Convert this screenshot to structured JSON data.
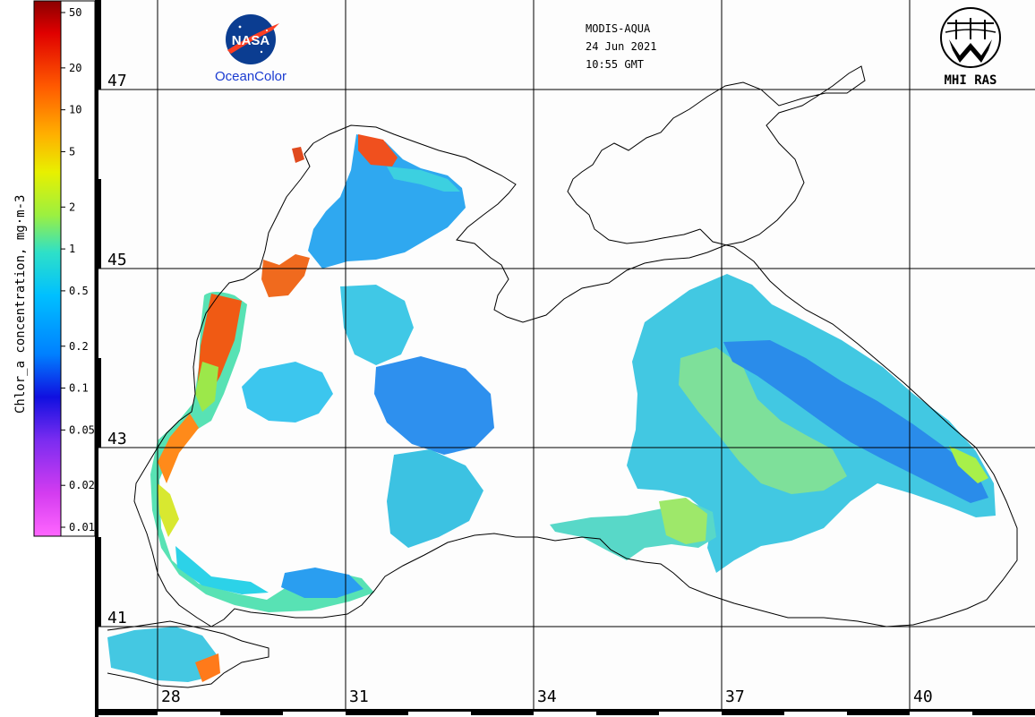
{
  "header": {
    "sensor": "MODIS-AQUA",
    "date": "24 Jun 2021",
    "time": "10:55 GMT",
    "institute": "MHI RAS"
  },
  "logos": {
    "nasa": {
      "name": "NASA",
      "caption": "OceanColor"
    },
    "mhi": {
      "caption": "MHI RAS"
    }
  },
  "colorbar": {
    "title": "Chlor_a concentration, mg·m-3",
    "unit": "mg·m⁻³",
    "scale": "log",
    "range": [
      0.01,
      60
    ],
    "ticks": [
      "50",
      "20",
      "10",
      "5",
      "2",
      "1",
      "0.5",
      "0.2",
      "0.1",
      "0.05",
      "0.02",
      "0.01"
    ],
    "colors": [
      "#8b0000",
      "#ff2a00",
      "#ff7a00",
      "#ffd400",
      "#a8ff3a",
      "#2ee0d8",
      "#00b8ff",
      "#0070ff",
      "#1010e0",
      "#7a2cf0",
      "#d43cf0",
      "#ff55ff"
    ]
  },
  "map": {
    "latitude_labels": [
      "47",
      "45",
      "43",
      "41"
    ],
    "longitude_labels": [
      "28",
      "31",
      "34",
      "37",
      "40"
    ],
    "graticule": true
  }
}
